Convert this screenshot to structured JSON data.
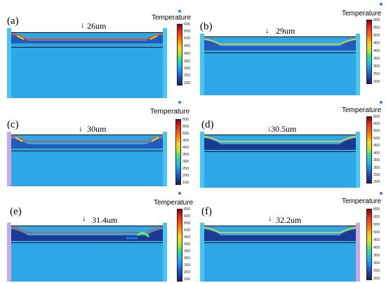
{
  "legend_title": "Temperature",
  "panels": [
    {
      "label": "(a)",
      "thickness": "26um",
      "ticks": [
        "600",
        "550",
        "500",
        "450",
        "400",
        "350",
        "300",
        "250",
        "200"
      ]
    },
    {
      "label": "(b)",
      "thickness": "29um",
      "ticks": [
        "600",
        "550",
        "500",
        "450",
        "400",
        "350",
        "300",
        "250",
        "200"
      ]
    },
    {
      "label": "(c)",
      "thickness": "30um",
      "ticks": [
        "600",
        "550",
        "500",
        "450",
        "400",
        "350",
        "300",
        "250",
        "200",
        "150"
      ]
    },
    {
      "label": "(d)",
      "thickness": "30.5um",
      "ticks": [
        "650",
        "600",
        "550",
        "500",
        "450",
        "400",
        "350",
        "300",
        "250",
        "200"
      ]
    },
    {
      "label": "(e)",
      "thickness": "31.4um",
      "ticks": [
        "650",
        "600",
        "550",
        "500",
        "450",
        "400",
        "350",
        "300",
        "250",
        "200",
        "150"
      ]
    },
    {
      "label": "(f)",
      "thickness": "32.2um",
      "ticks": [
        "650",
        "600",
        "550",
        "500",
        "450",
        "400",
        "350",
        "300",
        "250",
        "200"
      ]
    }
  ],
  "colors": {
    "substrate": "#2fa7e6",
    "hot": "#e32822",
    "cold": "#1a1f6b"
  }
}
